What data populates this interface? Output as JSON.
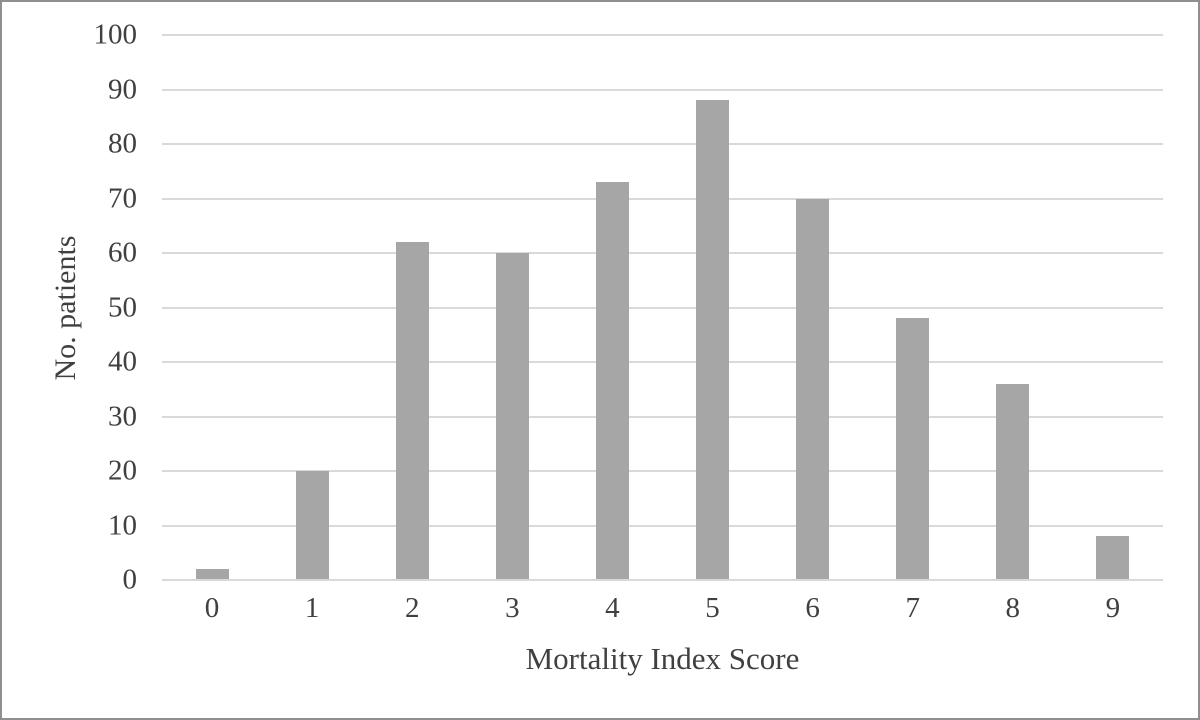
{
  "chart_data": {
    "type": "bar",
    "categories": [
      "0",
      "1",
      "2",
      "3",
      "4",
      "5",
      "6",
      "7",
      "8",
      "9"
    ],
    "values": [
      2,
      20,
      62,
      60,
      73,
      88,
      70,
      48,
      36,
      8
    ],
    "title": "",
    "xlabel": "Mortality Index Score",
    "ylabel": "No. patients",
    "ylim": [
      0,
      100
    ],
    "ytick_step": 10,
    "ytick_labels": [
      "0",
      "10",
      "20",
      "30",
      "40",
      "50",
      "60",
      "70",
      "80",
      "90",
      "100"
    ],
    "grid": true,
    "legend_position": "none",
    "colors": {
      "bar_fill": "#a6a6a6",
      "gridline": "#d9d9d9",
      "axis_line": "#d9d9d9",
      "text": "#404040",
      "background": "#ffffff",
      "figure_border": "#8f8f8f"
    }
  }
}
